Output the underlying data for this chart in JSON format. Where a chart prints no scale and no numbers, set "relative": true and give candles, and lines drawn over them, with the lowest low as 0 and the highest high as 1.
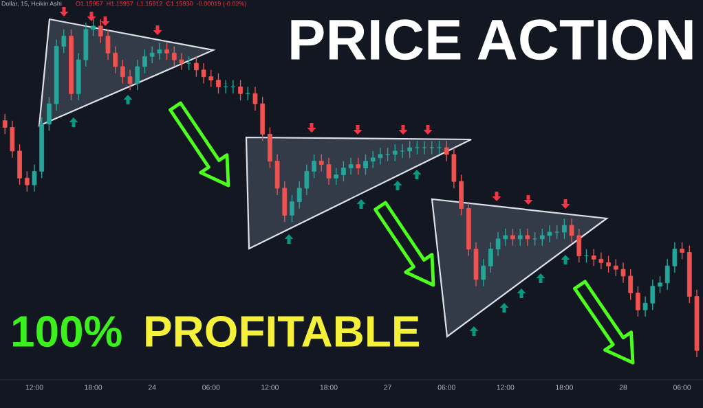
{
  "chart_data": {
    "type": "candlestick",
    "relative": true,
    "annotations": [
      "PRICE ACTION",
      "100%",
      "PROFITABLE",
      "Dollar, 15, Heikin Ashi",
      "O1.15957  H1.15957  L1.15912  C1.15930  -0.00019 (-0.02%)"
    ],
    "categories": [
      null,
      null,
      null,
      null,
      "12:00",
      null,
      null,
      null,
      null,
      null,
      null,
      null,
      "18:00",
      null,
      null,
      null,
      null,
      null,
      null,
      null,
      "24",
      null,
      null,
      null,
      null,
      null,
      null,
      null,
      "06:00",
      null,
      null,
      null,
      null,
      null,
      null,
      null,
      "12:00",
      null,
      null,
      null,
      null,
      null,
      null,
      null,
      "18:00",
      null,
      null,
      null,
      null,
      null,
      null,
      null,
      "27",
      null,
      null,
      null,
      null,
      null,
      null,
      null,
      "06:00",
      null,
      null,
      null,
      null,
      null,
      null,
      null,
      "12:00",
      null,
      null,
      null,
      null,
      null,
      null,
      null,
      "18:00",
      null,
      null,
      null,
      null,
      null,
      null,
      null,
      "28",
      null,
      null,
      null,
      null,
      null,
      null,
      null,
      "06:00",
      null,
      null
    ],
    "ohlc": [
      [
        0.7,
        0.72,
        0.66,
        0.68
      ],
      [
        0.68,
        0.7,
        0.59,
        0.61
      ],
      [
        0.61,
        0.63,
        0.51,
        0.53
      ],
      [
        0.53,
        0.55,
        0.49,
        0.51
      ],
      [
        0.51,
        0.57,
        0.49,
        0.55
      ],
      [
        0.55,
        0.71,
        0.53,
        0.69
      ],
      [
        0.69,
        0.77,
        0.67,
        0.75
      ],
      [
        0.75,
        0.94,
        0.73,
        0.92
      ],
      [
        0.92,
        0.97,
        0.9,
        0.95
      ],
      [
        0.95,
        0.97,
        0.76,
        0.78
      ],
      [
        0.78,
        0.9,
        0.76,
        0.88
      ],
      [
        0.88,
        0.99,
        0.86,
        0.97
      ],
      [
        0.97,
        1.0,
        0.95,
        0.98
      ],
      [
        0.98,
        1.0,
        0.93,
        0.95
      ],
      [
        0.95,
        0.97,
        0.88,
        0.9
      ],
      [
        0.9,
        0.92,
        0.84,
        0.86
      ],
      [
        0.86,
        0.88,
        0.81,
        0.83
      ],
      [
        0.83,
        0.85,
        0.79,
        0.81
      ],
      [
        0.81,
        0.88,
        0.79,
        0.86
      ],
      [
        0.86,
        0.91,
        0.84,
        0.89
      ],
      [
        0.89,
        0.92,
        0.87,
        0.9
      ],
      [
        0.9,
        0.93,
        0.88,
        0.91
      ],
      [
        0.91,
        0.93,
        0.88,
        0.9
      ],
      [
        0.9,
        0.92,
        0.86,
        0.88
      ],
      [
        0.88,
        0.9,
        0.85,
        0.87
      ],
      [
        0.87,
        0.89,
        0.85,
        0.87
      ],
      [
        0.87,
        0.89,
        0.83,
        0.85
      ],
      [
        0.85,
        0.87,
        0.81,
        0.83
      ],
      [
        0.83,
        0.85,
        0.8,
        0.82
      ],
      [
        0.82,
        0.84,
        0.78,
        0.8
      ],
      [
        0.8,
        0.82,
        0.78,
        0.8
      ],
      [
        0.8,
        0.82,
        0.78,
        0.8
      ],
      [
        0.8,
        0.82,
        0.76,
        0.78
      ],
      [
        0.78,
        0.8,
        0.76,
        0.78
      ],
      [
        0.78,
        0.8,
        0.73,
        0.75
      ],
      [
        0.75,
        0.77,
        0.64,
        0.66
      ],
      [
        0.66,
        0.68,
        0.56,
        0.58
      ],
      [
        0.58,
        0.6,
        0.48,
        0.5
      ],
      [
        0.5,
        0.52,
        0.4,
        0.42
      ],
      [
        0.42,
        0.48,
        0.4,
        0.46
      ],
      [
        0.46,
        0.52,
        0.44,
        0.5
      ],
      [
        0.5,
        0.57,
        0.48,
        0.55
      ],
      [
        0.55,
        0.6,
        0.53,
        0.58
      ],
      [
        0.58,
        0.6,
        0.55,
        0.57
      ],
      [
        0.57,
        0.59,
        0.51,
        0.53
      ],
      [
        0.53,
        0.56,
        0.51,
        0.54
      ],
      [
        0.54,
        0.58,
        0.52,
        0.56
      ],
      [
        0.56,
        0.59,
        0.54,
        0.57
      ],
      [
        0.57,
        0.59,
        0.54,
        0.56
      ],
      [
        0.56,
        0.6,
        0.54,
        0.58
      ],
      [
        0.58,
        0.61,
        0.56,
        0.59
      ],
      [
        0.59,
        0.62,
        0.57,
        0.6
      ],
      [
        0.6,
        0.62,
        0.58,
        0.6
      ],
      [
        0.6,
        0.63,
        0.58,
        0.61
      ],
      [
        0.61,
        0.63,
        0.59,
        0.61
      ],
      [
        0.61,
        0.64,
        0.59,
        0.62
      ],
      [
        0.62,
        0.64,
        0.6,
        0.62
      ],
      [
        0.62,
        0.64,
        0.6,
        0.62
      ],
      [
        0.62,
        0.64,
        0.6,
        0.62
      ],
      [
        0.62,
        0.64,
        0.6,
        0.62
      ],
      [
        0.62,
        0.64,
        0.58,
        0.6
      ],
      [
        0.6,
        0.62,
        0.5,
        0.52
      ],
      [
        0.52,
        0.54,
        0.42,
        0.44
      ],
      [
        0.44,
        0.46,
        0.3,
        0.32
      ],
      [
        0.32,
        0.34,
        0.21,
        0.23
      ],
      [
        0.23,
        0.29,
        0.21,
        0.27
      ],
      [
        0.27,
        0.34,
        0.25,
        0.32
      ],
      [
        0.32,
        0.37,
        0.3,
        0.35
      ],
      [
        0.35,
        0.38,
        0.33,
        0.36
      ],
      [
        0.36,
        0.38,
        0.33,
        0.35
      ],
      [
        0.35,
        0.38,
        0.33,
        0.36
      ],
      [
        0.36,
        0.38,
        0.33,
        0.35
      ],
      [
        0.35,
        0.37,
        0.33,
        0.35
      ],
      [
        0.35,
        0.38,
        0.33,
        0.36
      ],
      [
        0.36,
        0.39,
        0.34,
        0.37
      ],
      [
        0.37,
        0.39,
        0.35,
        0.37
      ],
      [
        0.37,
        0.41,
        0.35,
        0.39
      ],
      [
        0.39,
        0.41,
        0.34,
        0.36
      ],
      [
        0.36,
        0.38,
        0.28,
        0.3
      ],
      [
        0.3,
        0.32,
        0.28,
        0.3
      ],
      [
        0.3,
        0.32,
        0.27,
        0.29
      ],
      [
        0.29,
        0.31,
        0.26,
        0.28
      ],
      [
        0.28,
        0.3,
        0.25,
        0.27
      ],
      [
        0.27,
        0.29,
        0.24,
        0.26
      ],
      [
        0.26,
        0.28,
        0.22,
        0.24
      ],
      [
        0.24,
        0.26,
        0.17,
        0.19
      ],
      [
        0.19,
        0.21,
        0.12,
        0.14
      ],
      [
        0.14,
        0.18,
        0.12,
        0.16
      ],
      [
        0.16,
        0.23,
        0.14,
        0.21
      ],
      [
        0.21,
        0.24,
        0.19,
        0.22
      ],
      [
        0.22,
        0.29,
        0.2,
        0.27
      ],
      [
        0.27,
        0.34,
        0.25,
        0.32
      ],
      [
        0.32,
        0.34,
        0.29,
        0.31
      ],
      [
        0.31,
        0.33,
        0.16,
        0.18
      ],
      [
        0.18,
        0.2,
        0.0,
        0.02
      ]
    ],
    "colors": [
      "#ef5350",
      "#ef5350",
      "#ef5350",
      "#ef5350",
      "#26a69a",
      "#26a69a",
      "#26a69a",
      "#26a69a",
      "#26a69a",
      "#ef5350",
      "#26a69a",
      "#26a69a",
      "#26a69a",
      "#ef5350",
      "#ef5350",
      "#ef5350",
      "#ef5350",
      "#ef5350",
      "#26a69a",
      "#26a69a",
      "#26a69a",
      "#26a69a",
      "#ef5350",
      "#ef5350",
      "#ef5350",
      "#26a69a",
      "#ef5350",
      "#ef5350",
      "#ef5350",
      "#ef5350",
      "#26a69a",
      "#26a69a",
      "#ef5350",
      "#26a69a",
      "#ef5350",
      "#ef5350",
      "#ef5350",
      "#ef5350",
      "#ef5350",
      "#26a69a",
      "#26a69a",
      "#26a69a",
      "#26a69a",
      "#ef5350",
      "#ef5350",
      "#26a69a",
      "#26a69a",
      "#26a69a",
      "#ef5350",
      "#26a69a",
      "#26a69a",
      "#26a69a",
      "#26a69a",
      "#26a69a",
      "#26a69a",
      "#26a69a",
      "#26a69a",
      "#26a69a",
      "#26a69a",
      "#26a69a",
      "#ef5350",
      "#ef5350",
      "#ef5350",
      "#ef5350",
      "#ef5350",
      "#26a69a",
      "#26a69a",
      "#26a69a",
      "#26a69a",
      "#ef5350",
      "#26a69a",
      "#ef5350",
      "#26a69a",
      "#26a69a",
      "#26a69a",
      "#26a69a",
      "#26a69a",
      "#ef5350",
      "#ef5350",
      "#26a69a",
      "#ef5350",
      "#ef5350",
      "#ef5350",
      "#ef5350",
      "#ef5350",
      "#ef5350",
      "#ef5350",
      "#26a69a",
      "#26a69a",
      "#26a69a",
      "#26a69a",
      "#26a69a",
      "#ef5350",
      "#ef5350",
      "#ef5350"
    ]
  }
}
